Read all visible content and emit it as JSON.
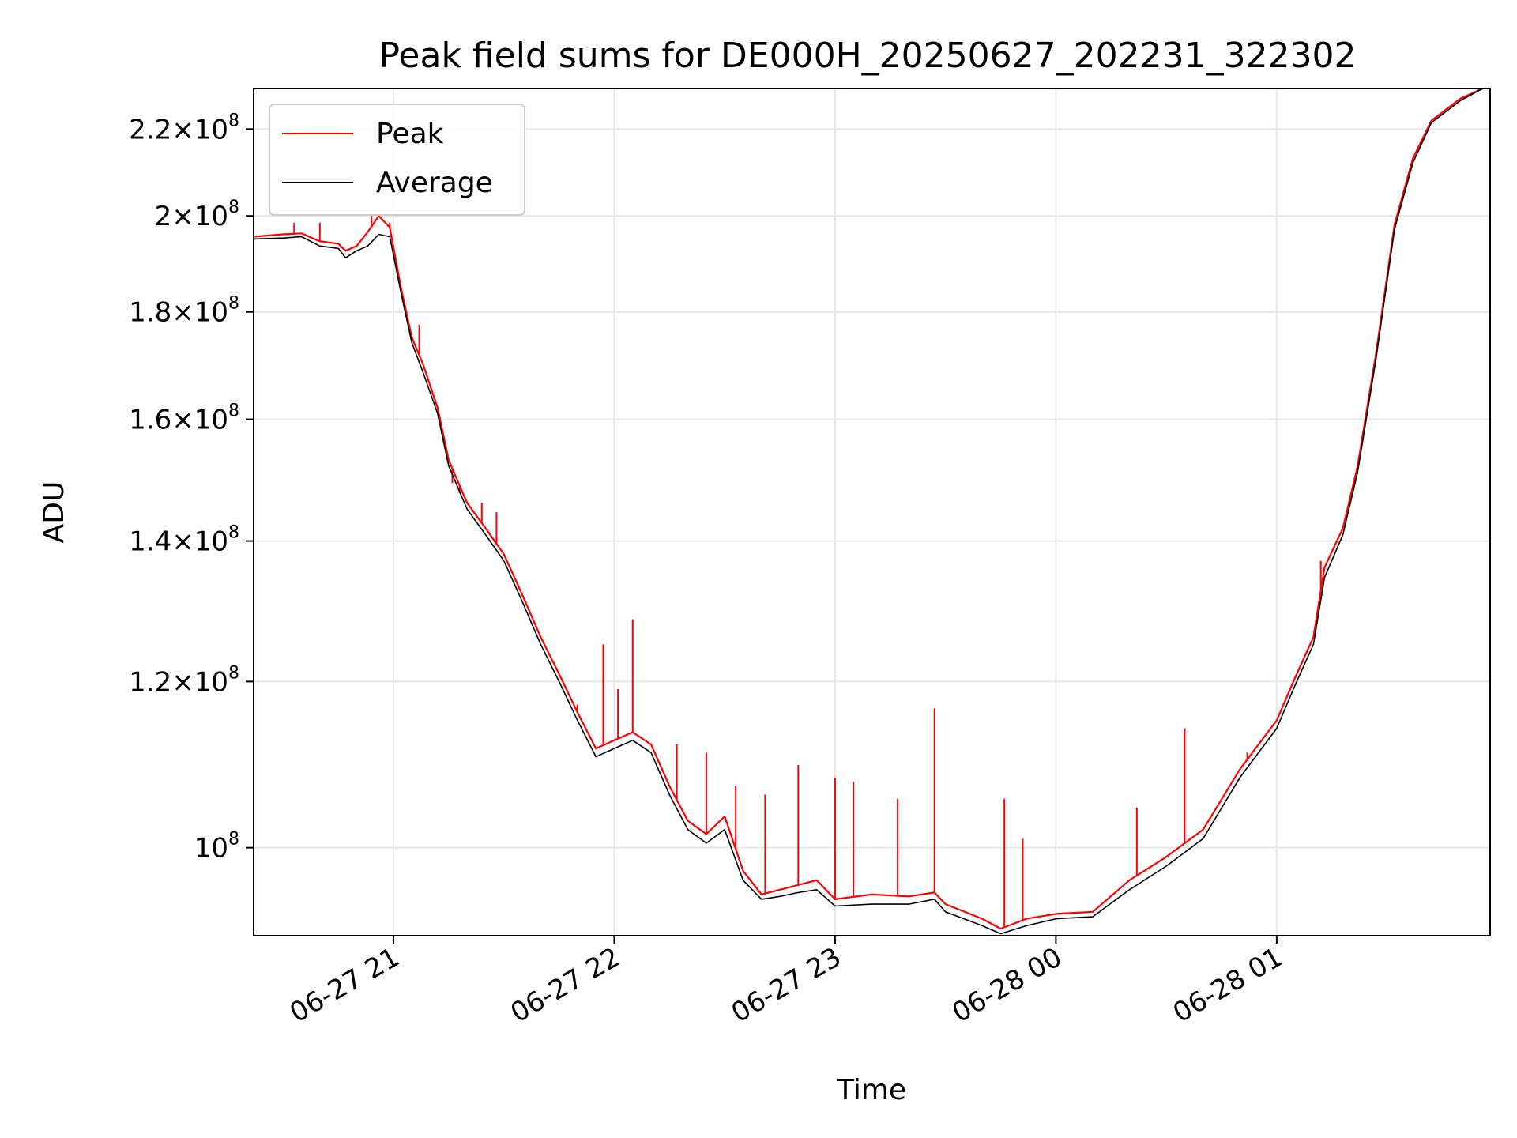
{
  "chart_data": {
    "type": "line",
    "title": "Peak field sums for DE000H_20250627_202231_322302",
    "xlabel": "Time",
    "ylabel": "ADU",
    "yscale": "log",
    "xlim": [
      "2025-06-27 20:22",
      "2025-06-28 01:58"
    ],
    "ylim": [
      90800000.0,
      230000000.0
    ],
    "grid": true,
    "legend_position": "upper-left",
    "x_ticks": [
      {
        "label": "06-27 21",
        "t": "2025-06-27 21:00"
      },
      {
        "label": "06-27 22",
        "t": "2025-06-27 22:00"
      },
      {
        "label": "06-27 23",
        "t": "2025-06-27 23:00"
      },
      {
        "label": "06-28 00",
        "t": "2025-06-28 00:00"
      },
      {
        "label": "06-28 01",
        "t": "2025-06-28 01:00"
      }
    ],
    "y_ticks": [
      {
        "mant": "2.2",
        "exp": "8",
        "value": 220000000.0
      },
      {
        "mant": "2",
        "exp": "8",
        "value": 200000000.0
      },
      {
        "mant": "1.8",
        "exp": "8",
        "value": 180000000.0
      },
      {
        "mant": "1.6",
        "exp": "8",
        "value": 160000000.0
      },
      {
        "mant": "1.4",
        "exp": "8",
        "value": 140000000.0
      },
      {
        "mant": "1.2",
        "exp": "8",
        "value": 120000000.0
      },
      {
        "mant": "",
        "exp": "8",
        "value": 100000000.0
      }
    ],
    "series": [
      {
        "name": "Peak",
        "color": "#ff0000",
        "points": [
          [
            "2025-06-27 20:22",
            195500000.0
          ],
          [
            "2025-06-27 20:30",
            196000000.0
          ],
          [
            "2025-06-27 20:35",
            196200000.0
          ],
          [
            "2025-06-27 20:40",
            194500000.0
          ],
          [
            "2025-06-27 20:45",
            194000000.0
          ],
          [
            "2025-06-27 20:47",
            192500000.0
          ],
          [
            "2025-06-27 20:50",
            193500000.0
          ],
          [
            "2025-06-27 20:53",
            196500000.0
          ],
          [
            "2025-06-27 20:56",
            200000000.0
          ],
          [
            "2025-06-27 20:59",
            197500000.0
          ],
          [
            "2025-06-27 21:02",
            185000000.0
          ],
          [
            "2025-06-27 21:05",
            175000000.0
          ],
          [
            "2025-06-27 21:08",
            170000000.0
          ],
          [
            "2025-06-27 21:12",
            162000000.0
          ],
          [
            "2025-06-27 21:15",
            153000000.0
          ],
          [
            "2025-06-27 21:20",
            146000000.0
          ],
          [
            "2025-06-27 21:25",
            142000000.0
          ],
          [
            "2025-06-27 21:30",
            138000000.0
          ],
          [
            "2025-06-27 21:35",
            132000000.0
          ],
          [
            "2025-06-27 21:40",
            126000000.0
          ],
          [
            "2025-06-27 21:45",
            121000000.0
          ],
          [
            "2025-06-27 21:50",
            116000000.0
          ],
          [
            "2025-06-27 21:55",
            111500000.0
          ],
          [
            "2025-06-27 22:00",
            112500000.0
          ],
          [
            "2025-06-27 22:05",
            113500000.0
          ],
          [
            "2025-06-27 22:10",
            112000000.0
          ],
          [
            "2025-06-27 22:15",
            107000000.0
          ],
          [
            "2025-06-27 22:20",
            103000000.0
          ],
          [
            "2025-06-27 22:25",
            101500000.0
          ],
          [
            "2025-06-27 22:30",
            103500000.0
          ],
          [
            "2025-06-27 22:35",
            97500000.0
          ],
          [
            "2025-06-27 22:40",
            95000000.0
          ],
          [
            "2025-06-27 22:45",
            95500000.0
          ],
          [
            "2025-06-27 22:50",
            96000000.0
          ],
          [
            "2025-06-27 22:55",
            96500000.0
          ],
          [
            "2025-06-27 23:00",
            94500000.0
          ],
          [
            "2025-06-27 23:10",
            95000000.0
          ],
          [
            "2025-06-27 23:20",
            94800000.0
          ],
          [
            "2025-06-27 23:27",
            95200000.0
          ],
          [
            "2025-06-27 23:30",
            94000000.0
          ],
          [
            "2025-06-27 23:40",
            92500000.0
          ],
          [
            "2025-06-27 23:45",
            91500000.0
          ],
          [
            "2025-06-27 23:52",
            92500000.0
          ],
          [
            "2025-06-28 00:00",
            93000000.0
          ],
          [
            "2025-06-28 00:10",
            93200000.0
          ],
          [
            "2025-06-28 00:20",
            96500000.0
          ],
          [
            "2025-06-28 00:30",
            99000000.0
          ],
          [
            "2025-06-28 00:40",
            102000000.0
          ],
          [
            "2025-06-28 00:50",
            109000000.0
          ],
          [
            "2025-06-28 01:00",
            115000000.0
          ],
          [
            "2025-06-28 01:05",
            120500000.0
          ],
          [
            "2025-06-28 01:10",
            126000000.0
          ],
          [
            "2025-06-28 01:13",
            136000000.0
          ],
          [
            "2025-06-28 01:18",
            142000000.0
          ],
          [
            "2025-06-28 01:22",
            152000000.0
          ],
          [
            "2025-06-28 01:27",
            172000000.0
          ],
          [
            "2025-06-28 01:32",
            198000000.0
          ],
          [
            "2025-06-28 01:37",
            213000000.0
          ],
          [
            "2025-06-28 01:42",
            222000000.0
          ],
          [
            "2025-06-28 01:50",
            227500000.0
          ],
          [
            "2025-06-28 01:56",
            230000000.0
          ]
        ],
        "spikes": [
          [
            "2025-06-27 20:33",
            198500000.0
          ],
          [
            "2025-06-27 20:40",
            198500000.0
          ],
          [
            "2025-06-27 20:54",
            200500000.0
          ],
          [
            "2025-06-27 20:59",
            198500000.0
          ],
          [
            "2025-06-27 21:07",
            177500000.0
          ],
          [
            "2025-06-27 21:16",
            149200000.0
          ],
          [
            "2025-06-27 21:18",
            147500000.0
          ],
          [
            "2025-06-27 21:24",
            146000000.0
          ],
          [
            "2025-06-27 21:28",
            144500000.0
          ],
          [
            "2025-06-27 21:36",
            131000000.0
          ],
          [
            "2025-06-27 21:50",
            117000000.0
          ],
          [
            "2025-06-27 21:57",
            125000000.0
          ],
          [
            "2025-06-27 22:01",
            119000000.0
          ],
          [
            "2025-06-27 22:05",
            128500000.0
          ],
          [
            "2025-06-27 22:17",
            112000000.0
          ],
          [
            "2025-06-27 22:25",
            111000000.0
          ],
          [
            "2025-06-27 22:33",
            107000000.0
          ],
          [
            "2025-06-27 22:41",
            106000000.0
          ],
          [
            "2025-06-27 22:50",
            109500000.0
          ],
          [
            "2025-06-27 23:00",
            108000000.0
          ],
          [
            "2025-06-27 23:05",
            107500000.0
          ],
          [
            "2025-06-27 23:17",
            105500000.0
          ],
          [
            "2025-06-27 23:27",
            116500000.0
          ],
          [
            "2025-06-27 23:46",
            105500000.0
          ],
          [
            "2025-06-27 23:51",
            101000000.0
          ],
          [
            "2025-06-28 00:22",
            104500000.0
          ],
          [
            "2025-06-28 00:35",
            114000000.0
          ],
          [
            "2025-06-28 00:52",
            111000000.0
          ],
          [
            "2025-06-28 01:12",
            137000000.0
          ]
        ]
      },
      {
        "name": "Average",
        "color": "#000000",
        "points": [
          [
            "2025-06-27 20:22",
            195000000.0
          ],
          [
            "2025-06-27 20:30",
            195200000.0
          ],
          [
            "2025-06-27 20:35",
            195500000.0
          ],
          [
            "2025-06-27 20:40",
            193500000.0
          ],
          [
            "2025-06-27 20:45",
            193000000.0
          ],
          [
            "2025-06-27 20:47",
            191000000.0
          ],
          [
            "2025-06-27 20:50",
            192500000.0
          ],
          [
            "2025-06-27 20:53",
            193500000.0
          ],
          [
            "2025-06-27 20:56",
            196000000.0
          ],
          [
            "2025-06-27 20:59",
            195500000.0
          ],
          [
            "2025-06-27 21:02",
            184000000.0
          ],
          [
            "2025-06-27 21:05",
            174000000.0
          ],
          [
            "2025-06-27 21:08",
            168500000.0
          ],
          [
            "2025-06-27 21:12",
            161000000.0
          ],
          [
            "2025-06-27 21:15",
            152000000.0
          ],
          [
            "2025-06-27 21:20",
            145000000.0
          ],
          [
            "2025-06-27 21:25",
            141000000.0
          ],
          [
            "2025-06-27 21:30",
            137000000.0
          ],
          [
            "2025-06-27 21:35",
            131000000.0
          ],
          [
            "2025-06-27 21:40",
            125000000.0
          ],
          [
            "2025-06-27 21:45",
            120000000.0
          ],
          [
            "2025-06-27 21:50",
            115000000.0
          ],
          [
            "2025-06-27 21:55",
            110500000.0
          ],
          [
            "2025-06-27 22:00",
            111500000.0
          ],
          [
            "2025-06-27 22:05",
            112500000.0
          ],
          [
            "2025-06-27 22:10",
            111000000.0
          ],
          [
            "2025-06-27 22:15",
            106000000.0
          ],
          [
            "2025-06-27 22:20",
            102000000.0
          ],
          [
            "2025-06-27 22:25",
            100500000.0
          ],
          [
            "2025-06-27 22:30",
            102000000.0
          ],
          [
            "2025-06-27 22:35",
            96500000.0
          ],
          [
            "2025-06-27 22:40",
            94500000.0
          ],
          [
            "2025-06-27 22:45",
            94800000.0
          ],
          [
            "2025-06-27 22:50",
            95200000.0
          ],
          [
            "2025-06-27 22:55",
            95500000.0
          ],
          [
            "2025-06-27 23:00",
            93800000.0
          ],
          [
            "2025-06-27 23:10",
            94000000.0
          ],
          [
            "2025-06-27 23:20",
            94000000.0
          ],
          [
            "2025-06-27 23:27",
            94500000.0
          ],
          [
            "2025-06-27 23:30",
            93200000.0
          ],
          [
            "2025-06-27 23:40",
            91800000.0
          ],
          [
            "2025-06-27 23:45",
            91000000.0
          ],
          [
            "2025-06-27 23:52",
            91800000.0
          ],
          [
            "2025-06-28 00:00",
            92500000.0
          ],
          [
            "2025-06-28 00:10",
            92700000.0
          ],
          [
            "2025-06-28 00:20",
            95500000.0
          ],
          [
            "2025-06-28 00:30",
            98000000.0
          ],
          [
            "2025-06-28 00:40",
            101000000.0
          ],
          [
            "2025-06-28 00:50",
            108000000.0
          ],
          [
            "2025-06-28 01:00",
            114000000.0
          ],
          [
            "2025-06-28 01:05",
            119500000.0
          ],
          [
            "2025-06-28 01:10",
            125000000.0
          ],
          [
            "2025-06-28 01:13",
            134500000.0
          ],
          [
            "2025-06-28 01:18",
            141000000.0
          ],
          [
            "2025-06-28 01:22",
            151000000.0
          ],
          [
            "2025-06-28 01:27",
            171000000.0
          ],
          [
            "2025-06-28 01:32",
            197000000.0
          ],
          [
            "2025-06-28 01:37",
            212000000.0
          ],
          [
            "2025-06-28 01:42",
            221500000.0
          ],
          [
            "2025-06-28 01:50",
            227000000.0
          ],
          [
            "2025-06-28 01:56",
            230000000.0
          ]
        ]
      }
    ]
  }
}
